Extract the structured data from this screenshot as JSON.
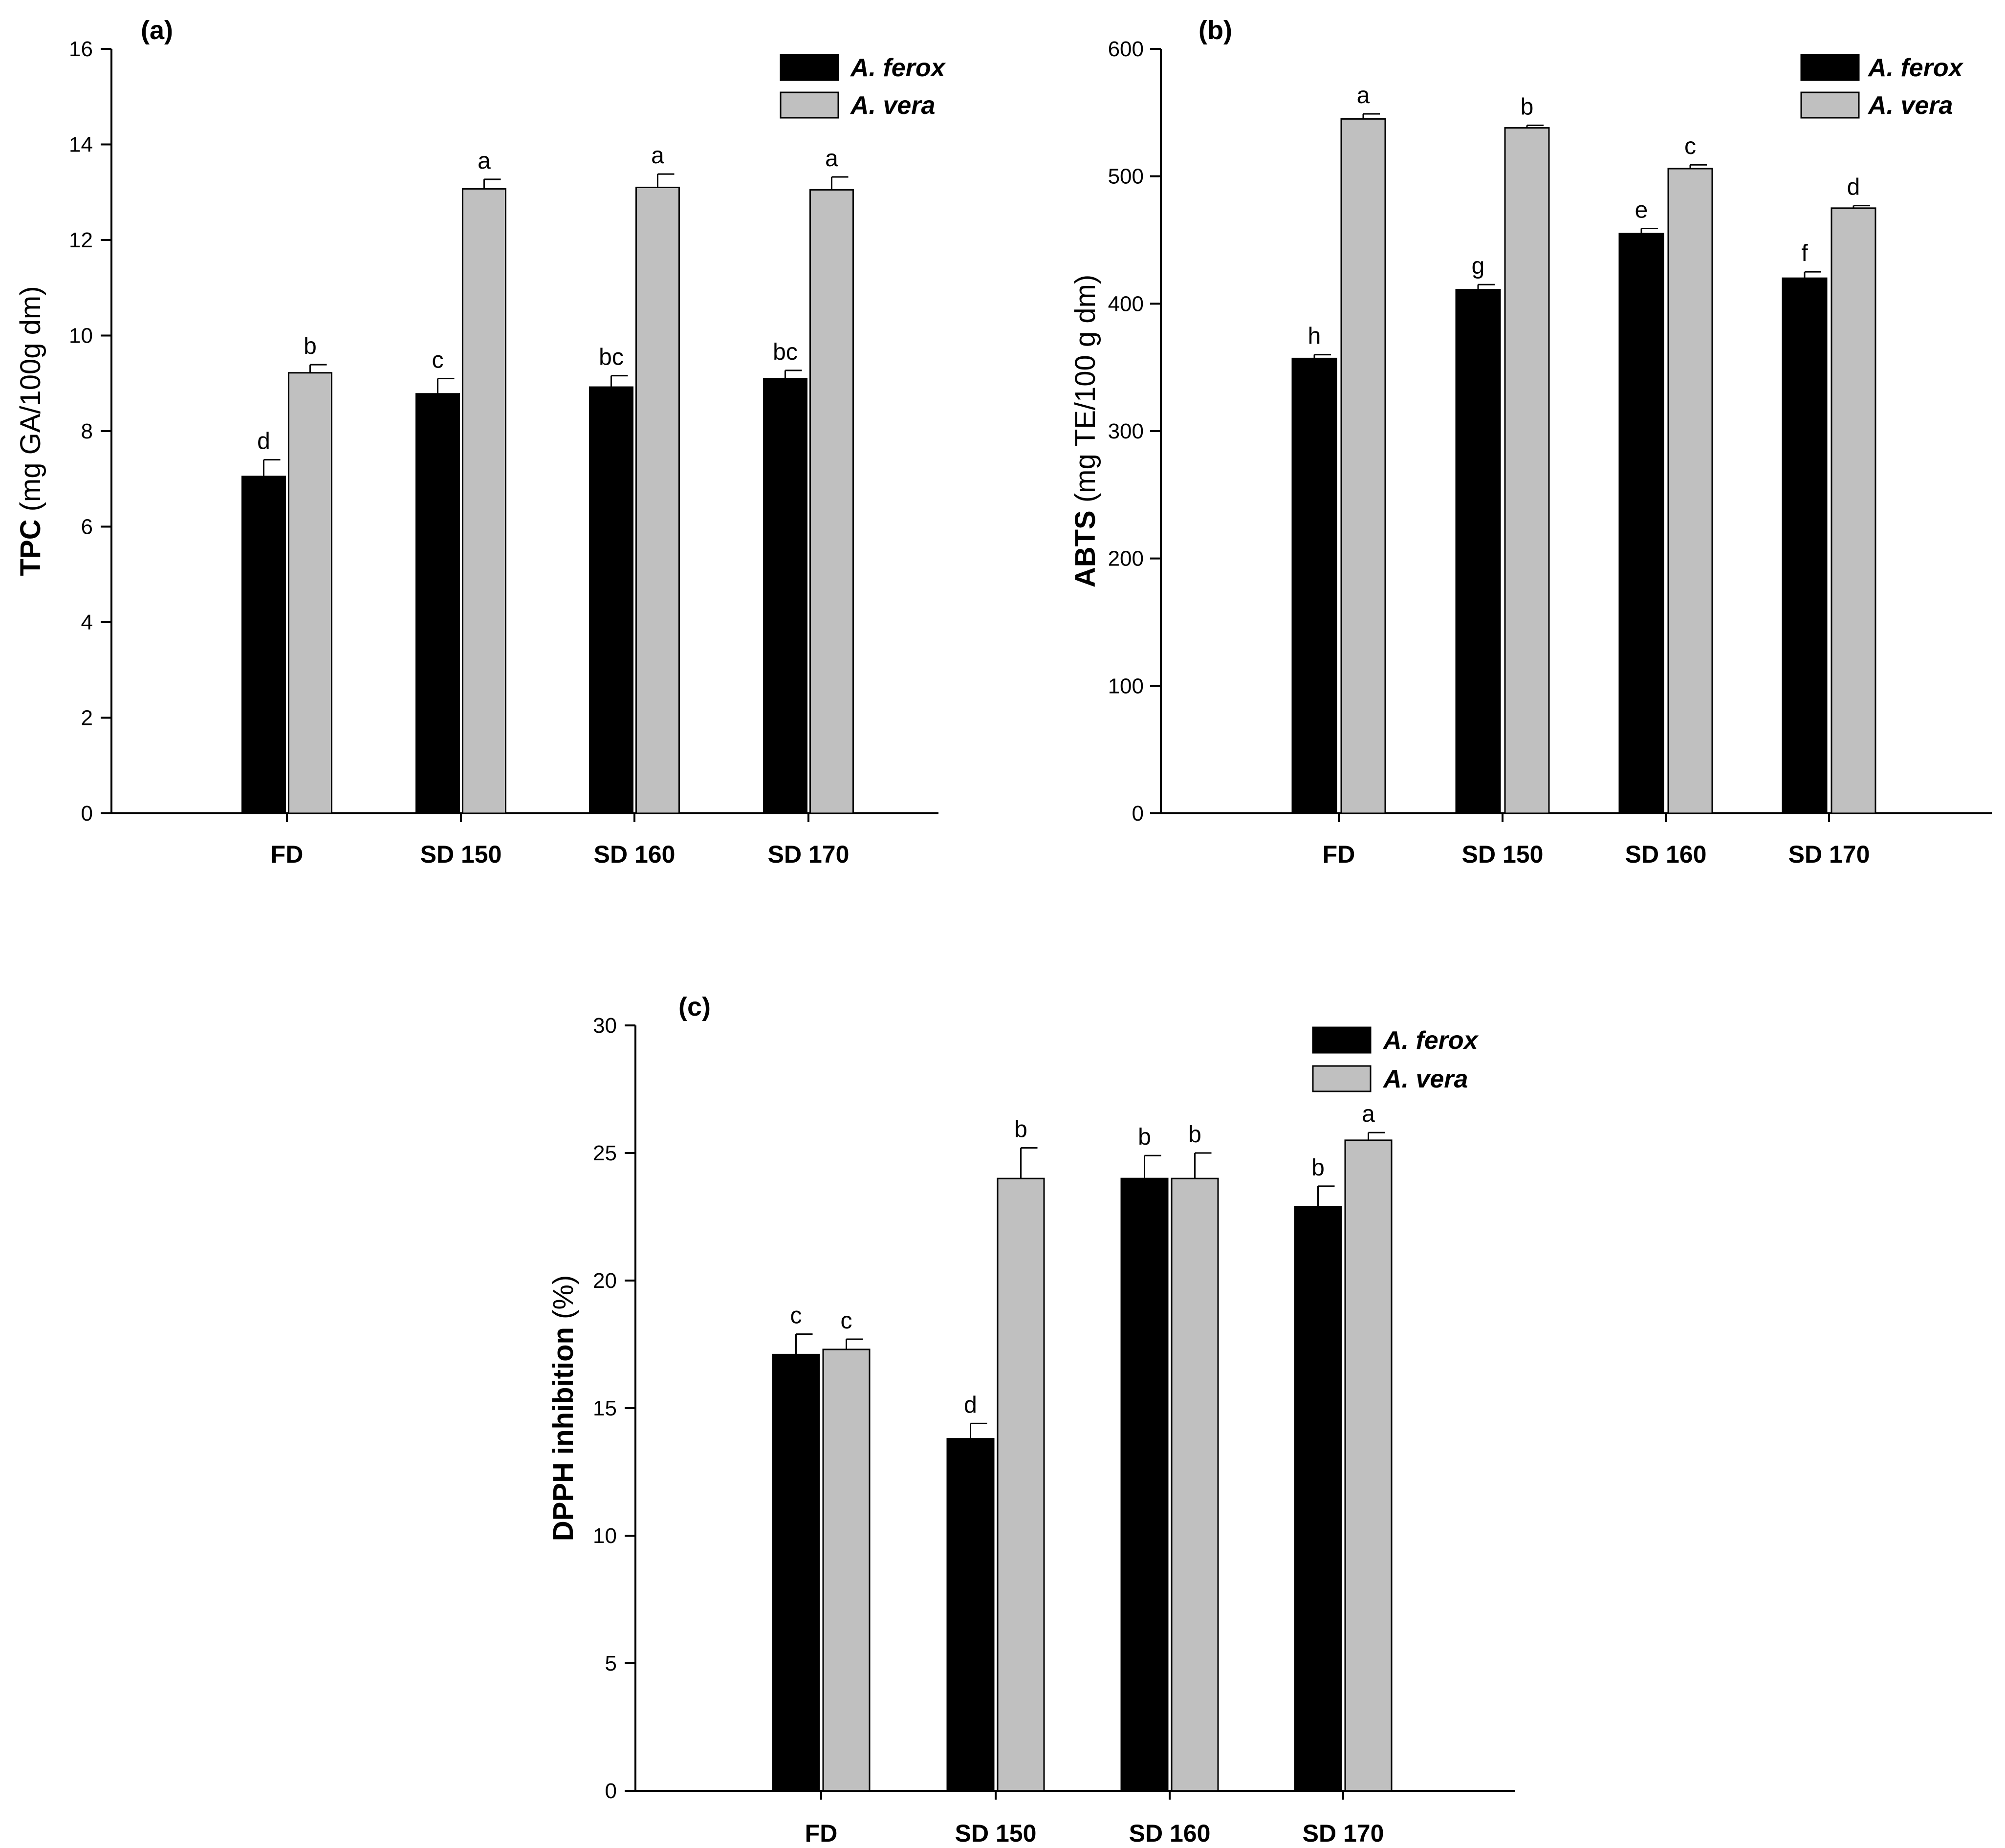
{
  "colors": {
    "series_1": "#000000",
    "series_2": "#c0c0c0",
    "axis": "#000000"
  },
  "chart_data": [
    {
      "id": "a",
      "type": "bar",
      "panel_label": "(a)",
      "title": "",
      "ylabel_bold": "TPC",
      "ylabel_rest": " (mg GA/100g dm)",
      "xlabel": "",
      "ylim": [
        0,
        16
      ],
      "yticks": [
        0,
        2,
        4,
        6,
        8,
        10,
        12,
        14,
        16
      ],
      "categories": [
        "FD",
        "SD 150",
        "SD 160",
        "SD 170"
      ],
      "legend": {
        "position": "top-right"
      },
      "series": [
        {
          "name": "A. ferox",
          "values": [
            7.05,
            8.78,
            8.92,
            9.1
          ],
          "errors": [
            0.35,
            0.32,
            0.24,
            0.17
          ],
          "letters": [
            "d",
            "c",
            "bc",
            "bc"
          ]
        },
        {
          "name": "A. vera",
          "values": [
            9.22,
            13.07,
            13.1,
            13.05
          ],
          "errors": [
            0.17,
            0.2,
            0.28,
            0.27
          ],
          "letters": [
            "b",
            "a",
            "a",
            "a"
          ]
        }
      ]
    },
    {
      "id": "b",
      "type": "bar",
      "panel_label": "(b)",
      "title": "",
      "ylabel_bold": "ABTS",
      "ylabel_rest": " (mg TE/100 g dm)",
      "xlabel": "",
      "ylim": [
        0,
        600
      ],
      "yticks": [
        0,
        100,
        200,
        300,
        400,
        500,
        600
      ],
      "categories": [
        "FD",
        "SD 150",
        "SD 160",
        "SD 170"
      ],
      "legend": {
        "position": "top-right"
      },
      "series": [
        {
          "name": "A. ferox",
          "values": [
            357,
            411,
            455,
            420
          ],
          "errors": [
            3,
            4,
            4,
            5
          ],
          "letters": [
            "h",
            "g",
            "e",
            "f"
          ]
        },
        {
          "name": "A. vera",
          "values": [
            545,
            538,
            506,
            475
          ],
          "errors": [
            4,
            2,
            3,
            2
          ],
          "letters": [
            "a",
            "b",
            "c",
            "d"
          ]
        }
      ]
    },
    {
      "id": "c",
      "type": "bar",
      "panel_label": "(c)",
      "title": "",
      "ylabel_bold": "DPPH inhibition",
      "ylabel_rest": " (%)",
      "xlabel": "",
      "ylim": [
        0,
        30
      ],
      "yticks": [
        0,
        5,
        10,
        15,
        20,
        25,
        30
      ],
      "categories": [
        "FD",
        "SD 150",
        "SD 160",
        "SD 170"
      ],
      "legend": {
        "position": "top-right"
      },
      "series": [
        {
          "name": "A. ferox",
          "values": [
            17.1,
            13.8,
            24.0,
            22.9
          ],
          "errors": [
            0.8,
            0.6,
            0.9,
            0.8
          ],
          "letters": [
            "c",
            "d",
            "b",
            "b"
          ]
        },
        {
          "name": "A. vera",
          "values": [
            17.3,
            24.0,
            24.0,
            25.5
          ],
          "errors": [
            0.4,
            1.2,
            1.0,
            0.3
          ],
          "letters": [
            "c",
            "b",
            "b",
            "a"
          ]
        }
      ]
    }
  ]
}
